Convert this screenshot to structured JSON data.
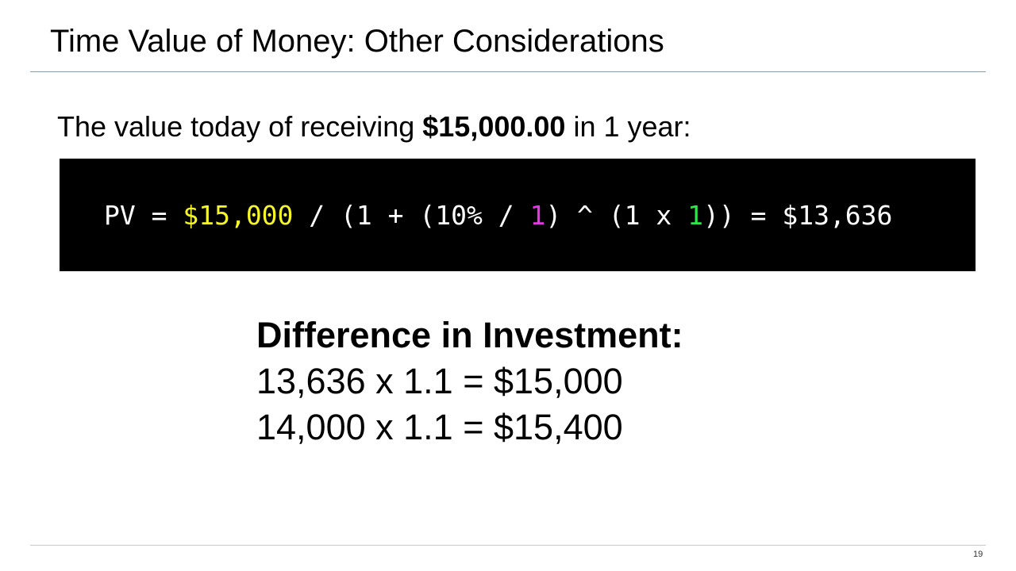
{
  "slide": {
    "title": "Time Value of Money: Other Considerations",
    "intro": {
      "prefix": "The value today of receiving ",
      "amount": "$15,000.00",
      "suffix": " in 1 year:"
    },
    "formula": {
      "lead": "PV = ",
      "future_value": "$15,000",
      "part1": " / (1 + (10% / ",
      "periods_per_year": "1",
      "part2": ") ^ (1 x ",
      "years": "1",
      "part3": ")) = $13,636",
      "colors": {
        "future_value": "#f5f52a",
        "periods_per_year": "#e637e6",
        "years": "#2ee64a"
      }
    },
    "difference": {
      "heading": "Difference in Investment:",
      "lines": [
        "13,636 x 1.1 = $15,000",
        "14,000 x 1.1 = $15,400"
      ]
    },
    "page_number": "19"
  }
}
